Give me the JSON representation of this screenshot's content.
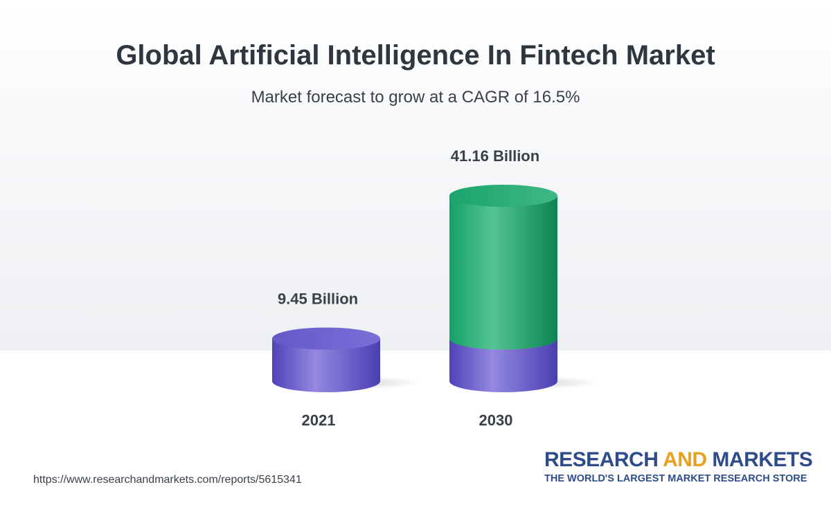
{
  "title": "Global Artificial Intelligence In Fintech Market",
  "subtitle": "Market forecast to grow at a CAGR of 16.5%",
  "footer": {
    "url": "https://www.researchandmarkets.com/reports/5615341",
    "brand_part1": "RESEARCH ",
    "brand_part2": "AND",
    "brand_part3": " MARKETS",
    "tagline": "THE WORLD'S LARGEST MARKET RESEARCH STORE"
  },
  "colors": {
    "base_bar": "#6b5fd0",
    "growth_bar": "#22a571",
    "brand_blue": "#2e4c8a",
    "brand_orange": "#e8a020"
  },
  "chart_data": {
    "type": "bar",
    "categories": [
      "2021",
      "2030"
    ],
    "values": [
      9.45,
      41.16
    ],
    "value_labels": [
      "9.45 Billion",
      "41.16 Billion"
    ],
    "unit": "Billion",
    "title": "Global Artificial Intelligence In Fintech Market",
    "subtitle": "Market forecast to grow at a CAGR of 16.5%",
    "cagr": "16.5%",
    "xlabel": "",
    "ylabel": "",
    "ylim": [
      0,
      41.16
    ],
    "grid": false,
    "legend": "none"
  }
}
